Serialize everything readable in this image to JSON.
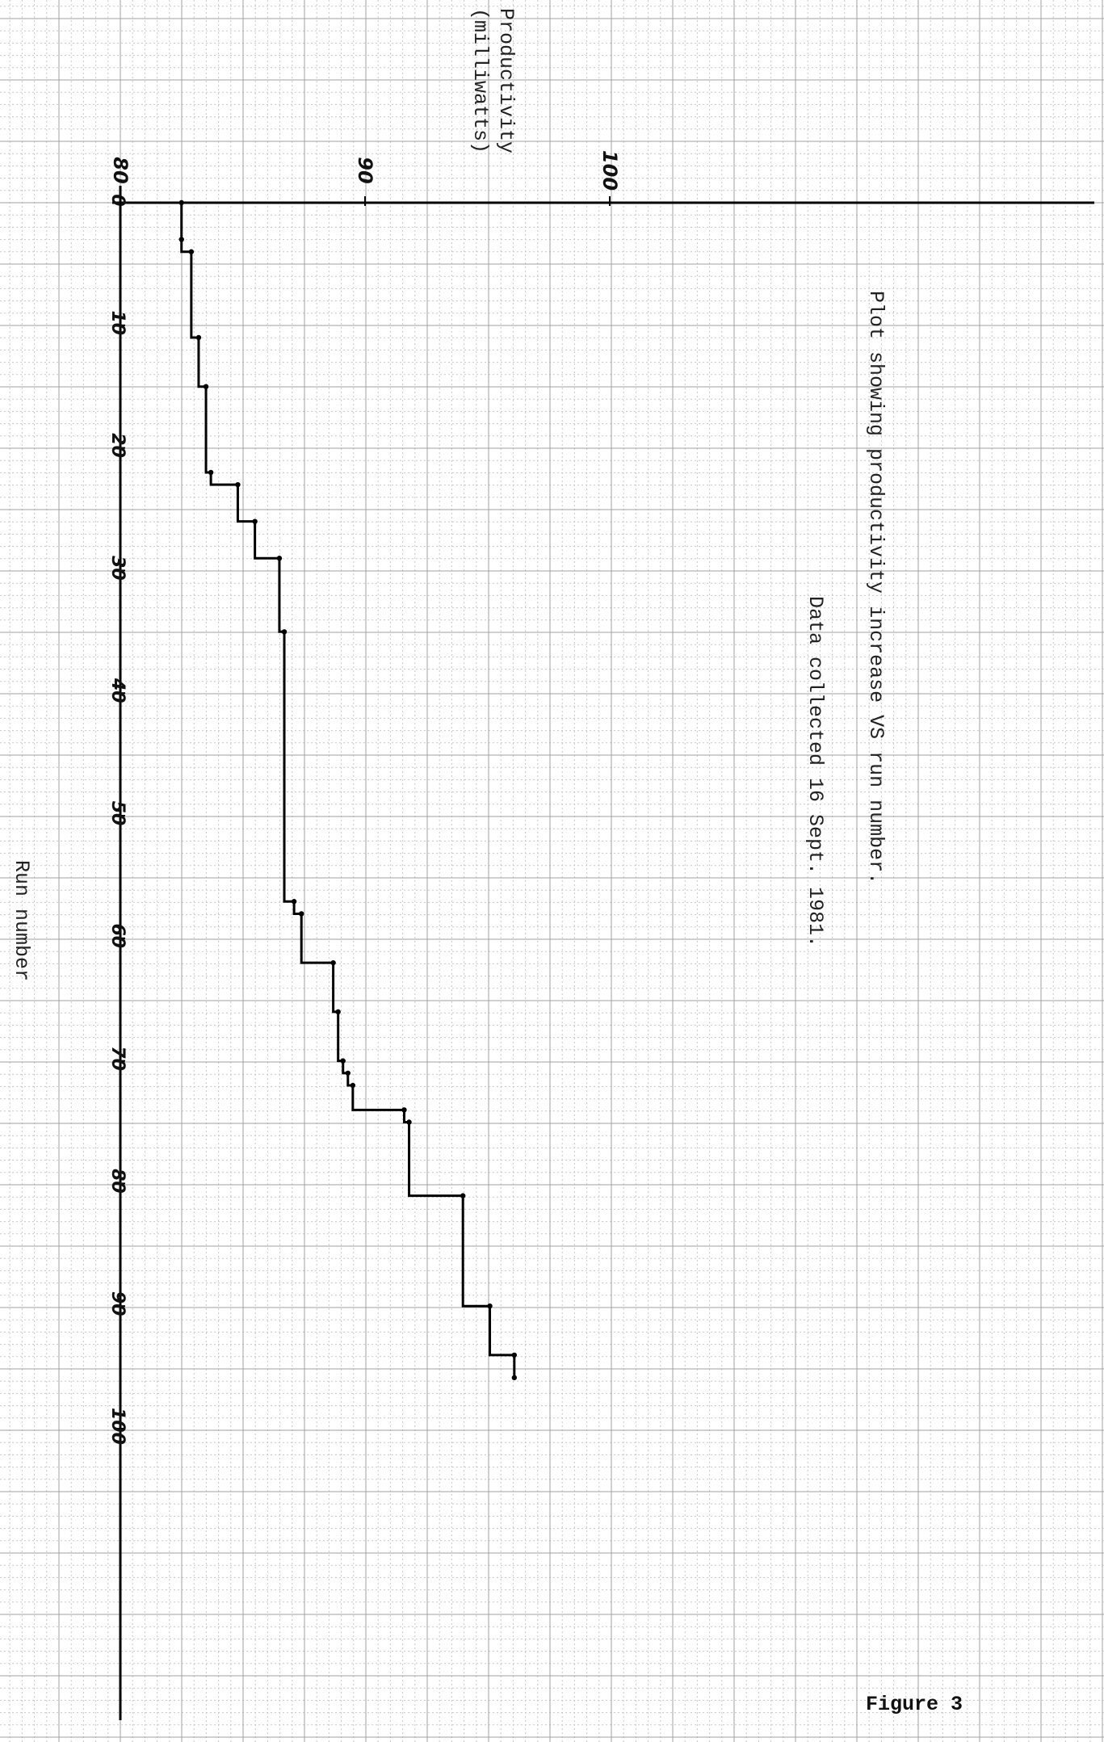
{
  "chart_data": {
    "type": "line",
    "step": true,
    "orientation": "rotated-90-clockwise",
    "title": "Plot showing productivity increase VS run number.",
    "subtitle": "Data collected 16 Sept. 1981.",
    "xlabel": "Run number",
    "ylabel_line1": "Productivity",
    "ylabel_line2": "(milliwatts)",
    "xlim": [
      0,
      100
    ],
    "ylim": [
      80,
      100
    ],
    "x_ticks": [
      {
        "value": 0,
        "label": "0"
      },
      {
        "value": 10,
        "label": "10"
      },
      {
        "value": 20,
        "label": "20"
      },
      {
        "value": 30,
        "label": "30"
      },
      {
        "value": 40,
        "label": "40"
      },
      {
        "value": 50,
        "label": "50"
      },
      {
        "value": 60,
        "label": "60"
      },
      {
        "value": 70,
        "label": "70"
      },
      {
        "value": 80,
        "label": "80"
      },
      {
        "value": 90,
        "label": "90"
      },
      {
        "value": 100,
        "label": "100"
      }
    ],
    "y_ticks": [
      {
        "value": 80,
        "label": "80"
      },
      {
        "value": 90,
        "label": "90"
      },
      {
        "value": 100,
        "label": "100"
      }
    ],
    "grid": true,
    "series": [
      {
        "points": [
          {
            "x": 0,
            "y": 82.5
          },
          {
            "x": 3,
            "y": 82.5
          },
          {
            "x": 4,
            "y": 82.9
          },
          {
            "x": 11,
            "y": 83.2
          },
          {
            "x": 15,
            "y": 83.5
          },
          {
            "x": 22,
            "y": 83.7
          },
          {
            "x": 23,
            "y": 84.8
          },
          {
            "x": 26,
            "y": 85.5
          },
          {
            "x": 29,
            "y": 86.5
          },
          {
            "x": 35,
            "y": 86.7
          },
          {
            "x": 57,
            "y": 87.1
          },
          {
            "x": 58,
            "y": 87.4
          },
          {
            "x": 62,
            "y": 88.7
          },
          {
            "x": 66,
            "y": 88.9
          },
          {
            "x": 70,
            "y": 89.1
          },
          {
            "x": 71,
            "y": 89.3
          },
          {
            "x": 72,
            "y": 89.5
          },
          {
            "x": 74,
            "y": 91.6
          },
          {
            "x": 75,
            "y": 91.8
          },
          {
            "x": 81,
            "y": 94.0
          },
          {
            "x": 90,
            "y": 95.1
          },
          {
            "x": 94,
            "y": 96.1
          }
        ]
      }
    ],
    "footer_label": "Figure 3"
  }
}
